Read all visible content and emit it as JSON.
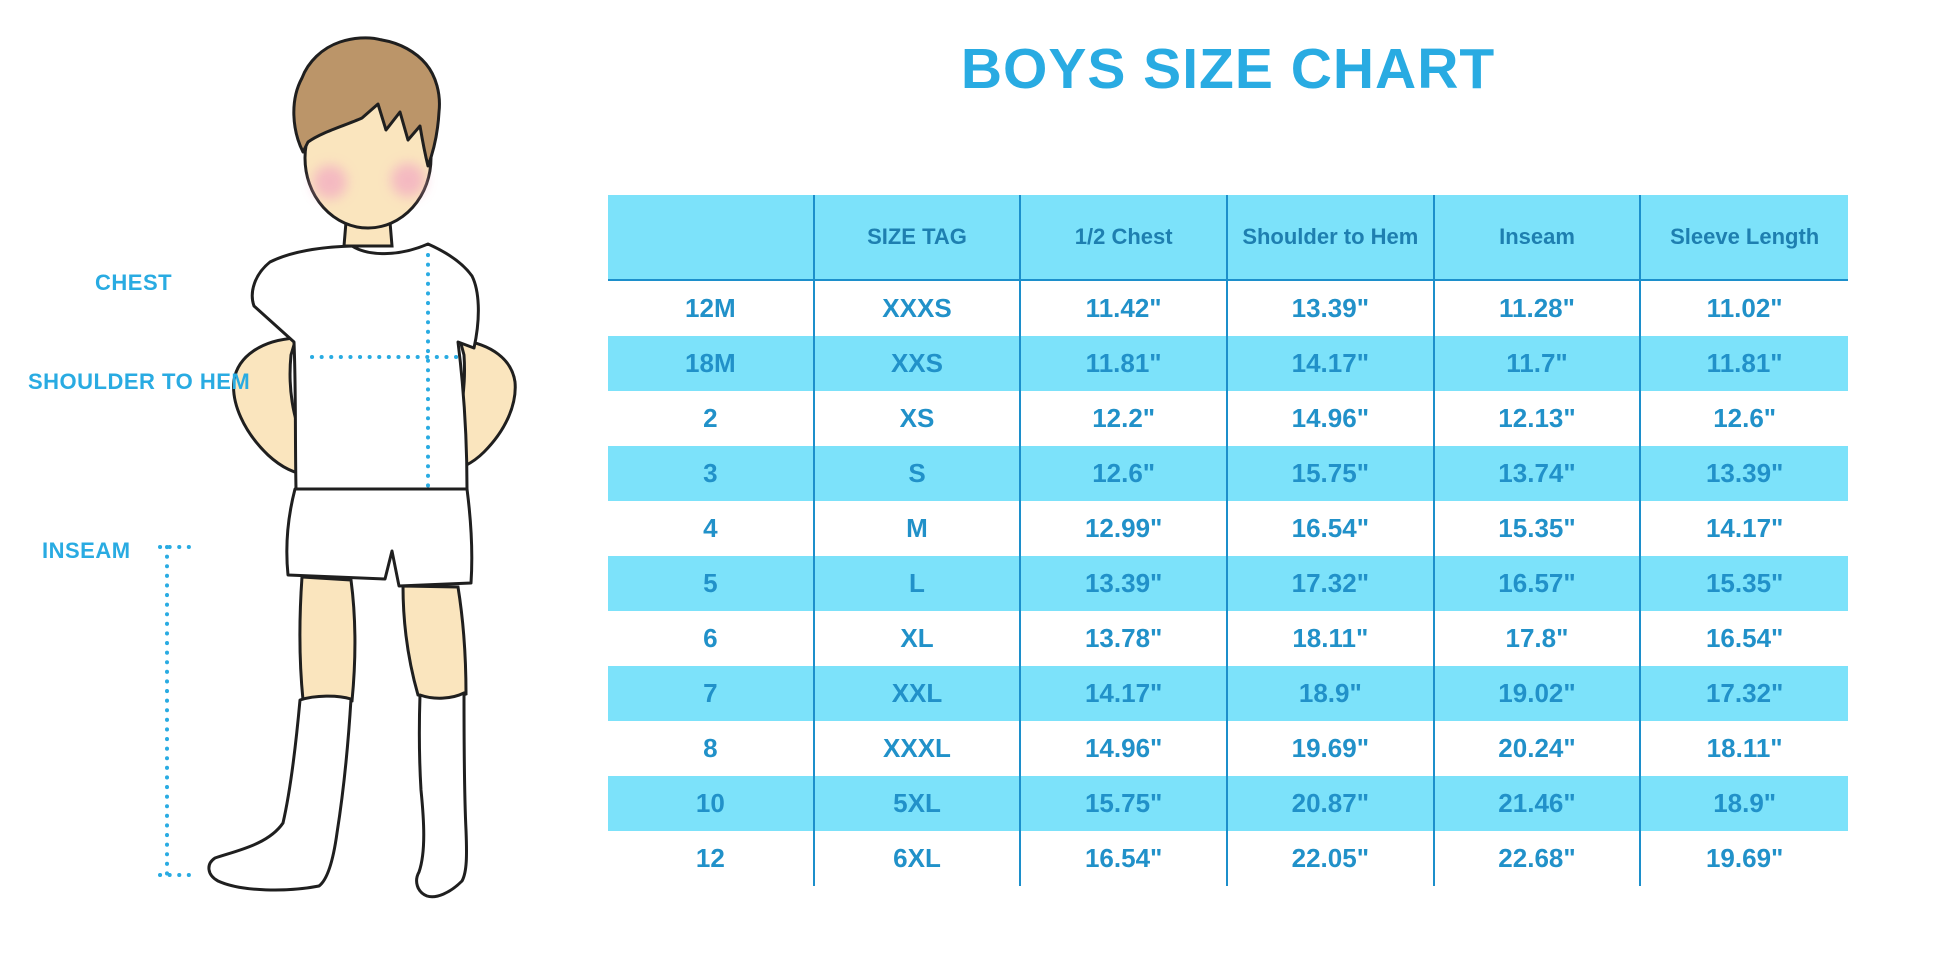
{
  "title": "BOYS SIZE CHART",
  "figure": {
    "chest_label": "CHEST",
    "shoulder_to_hem_label": "SHOULDER TO HEM",
    "inseam_label": "INSEAM"
  },
  "chart_data": {
    "type": "table",
    "title": "BOYS SIZE CHART",
    "columns": [
      "",
      "SIZE TAG",
      "1/2 Chest",
      "Shoulder to Hem",
      "Inseam",
      "Sleeve Length"
    ],
    "rows": [
      [
        "12M",
        "XXXS",
        "11.42\"",
        "13.39\"",
        "11.28\"",
        "11.02\""
      ],
      [
        "18M",
        "XXS",
        "11.81\"",
        "14.17\"",
        "11.7\"",
        "11.81\""
      ],
      [
        "2",
        "XS",
        "12.2\"",
        "14.96\"",
        "12.13\"",
        "12.6\""
      ],
      [
        "3",
        "S",
        "12.6\"",
        "15.75\"",
        "13.74\"",
        "13.39\""
      ],
      [
        "4",
        "M",
        "12.99\"",
        "16.54\"",
        "15.35\"",
        "14.17\""
      ],
      [
        "5",
        "L",
        "13.39\"",
        "17.32\"",
        "16.57\"",
        "15.35\""
      ],
      [
        "6",
        "XL",
        "13.78\"",
        "18.11\"",
        "17.8\"",
        "16.54\""
      ],
      [
        "7",
        "XXL",
        "14.17\"",
        "18.9\"",
        "19.02\"",
        "17.32\""
      ],
      [
        "8",
        "XXXL",
        "14.96\"",
        "19.69\"",
        "20.24\"",
        "18.11\""
      ],
      [
        "10",
        "5XL",
        "15.75\"",
        "20.87\"",
        "21.46\"",
        "18.9\""
      ],
      [
        "12",
        "6XL",
        "16.54\"",
        "22.05\"",
        "22.68\"",
        "19.69\""
      ]
    ],
    "row_striping": "white / cyan alternating, header cyan",
    "units": "inches"
  },
  "colors": {
    "accent_blue": "#29ABE2",
    "row_cyan": "#7CE2FA",
    "header_text": "#1E7FB0",
    "cell_text": "#2191C9",
    "divider_line": "#1C8FCB",
    "skin": "#FAE5BE",
    "hair": "#BB9569"
  }
}
